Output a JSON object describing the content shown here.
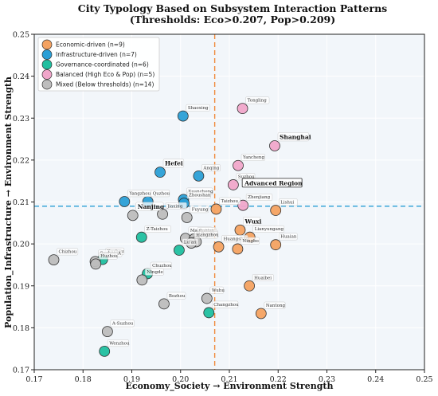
{
  "chart_data": {
    "type": "scatter",
    "title_line1": "City Typology Based on Subsystem Interaction Patterns",
    "title_line2": "(Thresholds: Eco>0.207, Pop>0.209)",
    "xlabel": "Economy_Society → Environment Strength",
    "ylabel": "Population_Infrastructure → Environment Strength",
    "xlim": [
      0.17,
      0.25
    ],
    "ylim": [
      0.17,
      0.25
    ],
    "xticks": [
      "0.17",
      "0.18",
      "0.19",
      "0.20",
      "0.21",
      "0.22",
      "0.23",
      "0.24",
      "0.25"
    ],
    "yticks": [
      "0.17",
      "0.18",
      "0.19",
      "0.20",
      "0.21",
      "0.22",
      "0.23",
      "0.24",
      "0.25"
    ],
    "thresholds": {
      "x": 0.207,
      "y": 0.209
    },
    "grid": true,
    "legend_position": "top-left",
    "categories": [
      {
        "key": "eco",
        "label": "Economic-driven (n=9)",
        "color": "#f4a261"
      },
      {
        "key": "infra",
        "label": "Infrastructure-driven (n=7)",
        "color": "#2a9fd6"
      },
      {
        "key": "gov",
        "label": "Governance-coordinated (n=6)",
        "color": "#1fbf9f"
      },
      {
        "key": "bal",
        "label": "Balanced (High Eco & Pop) (n=5)",
        "color": "#f0a6ca"
      },
      {
        "key": "mix",
        "label": "Mixed (Below thresholds) (n=14)",
        "color": "#bdbdbd"
      }
    ],
    "points": [
      {
        "name": "Tongling",
        "x": 0.2127,
        "y": 0.2323,
        "cat": "bal",
        "bold": false
      },
      {
        "name": "Shanghai",
        "x": 0.2193,
        "y": 0.2234,
        "cat": "bal",
        "bold": true
      },
      {
        "name": "Yancheng",
        "x": 0.2118,
        "y": 0.2187,
        "cat": "bal",
        "bold": false
      },
      {
        "name": "Suzhou",
        "x": 0.2108,
        "y": 0.2141,
        "cat": "bal",
        "bold": false
      },
      {
        "name": "Zhenjiang",
        "x": 0.2128,
        "y": 0.2092,
        "cat": "bal",
        "bold": false
      },
      {
        "name": "Shaoxing",
        "x": 0.2005,
        "y": 0.2305,
        "cat": "infra",
        "bold": false
      },
      {
        "name": "Hefei",
        "x": 0.1958,
        "y": 0.2171,
        "cat": "infra",
        "bold": true
      },
      {
        "name": "Anqing",
        "x": 0.2037,
        "y": 0.2162,
        "cat": "infra",
        "bold": false
      },
      {
        "name": "Xuancheng",
        "x": 0.2006,
        "y": 0.2106,
        "cat": "infra",
        "bold": false
      },
      {
        "name": "Zhoushan",
        "x": 0.2007,
        "y": 0.2097,
        "cat": "infra",
        "bold": false
      },
      {
        "name": "Yangzhou",
        "x": 0.1885,
        "y": 0.2101,
        "cat": "infra",
        "bold": false
      },
      {
        "name": "Quzhou",
        "x": 0.1933,
        "y": 0.2101,
        "cat": "infra",
        "bold": false
      },
      {
        "name": "Taizhou",
        "x": 0.2073,
        "y": 0.2083,
        "cat": "eco",
        "bold": false
      },
      {
        "name": "Lishui",
        "x": 0.2195,
        "y": 0.208,
        "cat": "eco",
        "bold": false
      },
      {
        "name": "Wuxi",
        "x": 0.2122,
        "y": 0.2033,
        "cat": "eco",
        "bold": true
      },
      {
        "name": "Lianyungang",
        "x": 0.2142,
        "y": 0.2016,
        "cat": "eco",
        "bold": false
      },
      {
        "name": "Huaian",
        "x": 0.2195,
        "y": 0.1998,
        "cat": "eco",
        "bold": false
      },
      {
        "name": "Huangshan",
        "x": 0.2078,
        "y": 0.1993,
        "cat": "eco",
        "bold": false
      },
      {
        "name": "Ningbo",
        "x": 0.2117,
        "y": 0.1988,
        "cat": "eco",
        "bold": false
      },
      {
        "name": "Huaibei",
        "x": 0.2141,
        "y": 0.19,
        "cat": "eco",
        "bold": false
      },
      {
        "name": "Nantong",
        "x": 0.2165,
        "y": 0.1834,
        "cat": "eco",
        "bold": false
      },
      {
        "name": "Z-Taizhou",
        "x": 0.192,
        "y": 0.2016,
        "cat": "gov",
        "bold": false
      },
      {
        "name": "Lu'an",
        "x": 0.1997,
        "y": 0.1985,
        "cat": "gov",
        "bold": false
      },
      {
        "name": "Xuzhou",
        "x": 0.184,
        "y": 0.1963,
        "cat": "gov",
        "bold": false
      },
      {
        "name": "Chuzhou",
        "x": 0.1932,
        "y": 0.1929,
        "cat": "gov",
        "bold": false
      },
      {
        "name": "Changzhou",
        "x": 0.2058,
        "y": 0.1836,
        "cat": "gov",
        "bold": false
      },
      {
        "name": "Wenzhou",
        "x": 0.1844,
        "y": 0.1744,
        "cat": "gov",
        "bold": false
      },
      {
        "name": "Nanjing",
        "x": 0.1902,
        "y": 0.2068,
        "cat": "mix",
        "bold": true
      },
      {
        "name": "Jiaxing",
        "x": 0.1963,
        "y": 0.2071,
        "cat": "mix",
        "bold": false
      },
      {
        "name": "Fuyang",
        "x": 0.2013,
        "y": 0.2063,
        "cat": "mix",
        "bold": false
      },
      {
        "name": "Maanshan",
        "x": 0.201,
        "y": 0.2013,
        "cat": "mix",
        "bold": false
      },
      {
        "name": "Suqian",
        "x": 0.2028,
        "y": 0.2012,
        "cat": "mix",
        "bold": false
      },
      {
        "name": "Bengbu",
        "x": 0.2032,
        "y": 0.2005,
        "cat": "mix",
        "bold": false
      },
      {
        "name": "Hangzhou",
        "x": 0.2022,
        "y": 0.2002,
        "cat": "mix",
        "bold": false
      },
      {
        "name": "Chizhou",
        "x": 0.174,
        "y": 0.1962,
        "cat": "mix",
        "bold": false
      },
      {
        "name": "Suzhou-A",
        "x": 0.1825,
        "y": 0.1958,
        "cat": "mix",
        "bold": false
      },
      {
        "name": "Huzhou",
        "x": 0.1826,
        "y": 0.1952,
        "cat": "mix",
        "bold": false
      },
      {
        "name": "Ningde",
        "x": 0.1921,
        "y": 0.1914,
        "cat": "mix",
        "bold": false
      },
      {
        "name": "Wuhu",
        "x": 0.2054,
        "y": 0.187,
        "cat": "mix",
        "bold": false
      },
      {
        "name": "Bozhou",
        "x": 0.1966,
        "y": 0.1857,
        "cat": "mix",
        "bold": false
      },
      {
        "name": "A-Suzhou",
        "x": 0.185,
        "y": 0.1791,
        "cat": "mix",
        "bold": false
      }
    ],
    "annotations": [
      {
        "text": "Advanced Region",
        "x": 0.2128,
        "y": 0.2143,
        "boxed": true
      }
    ]
  }
}
